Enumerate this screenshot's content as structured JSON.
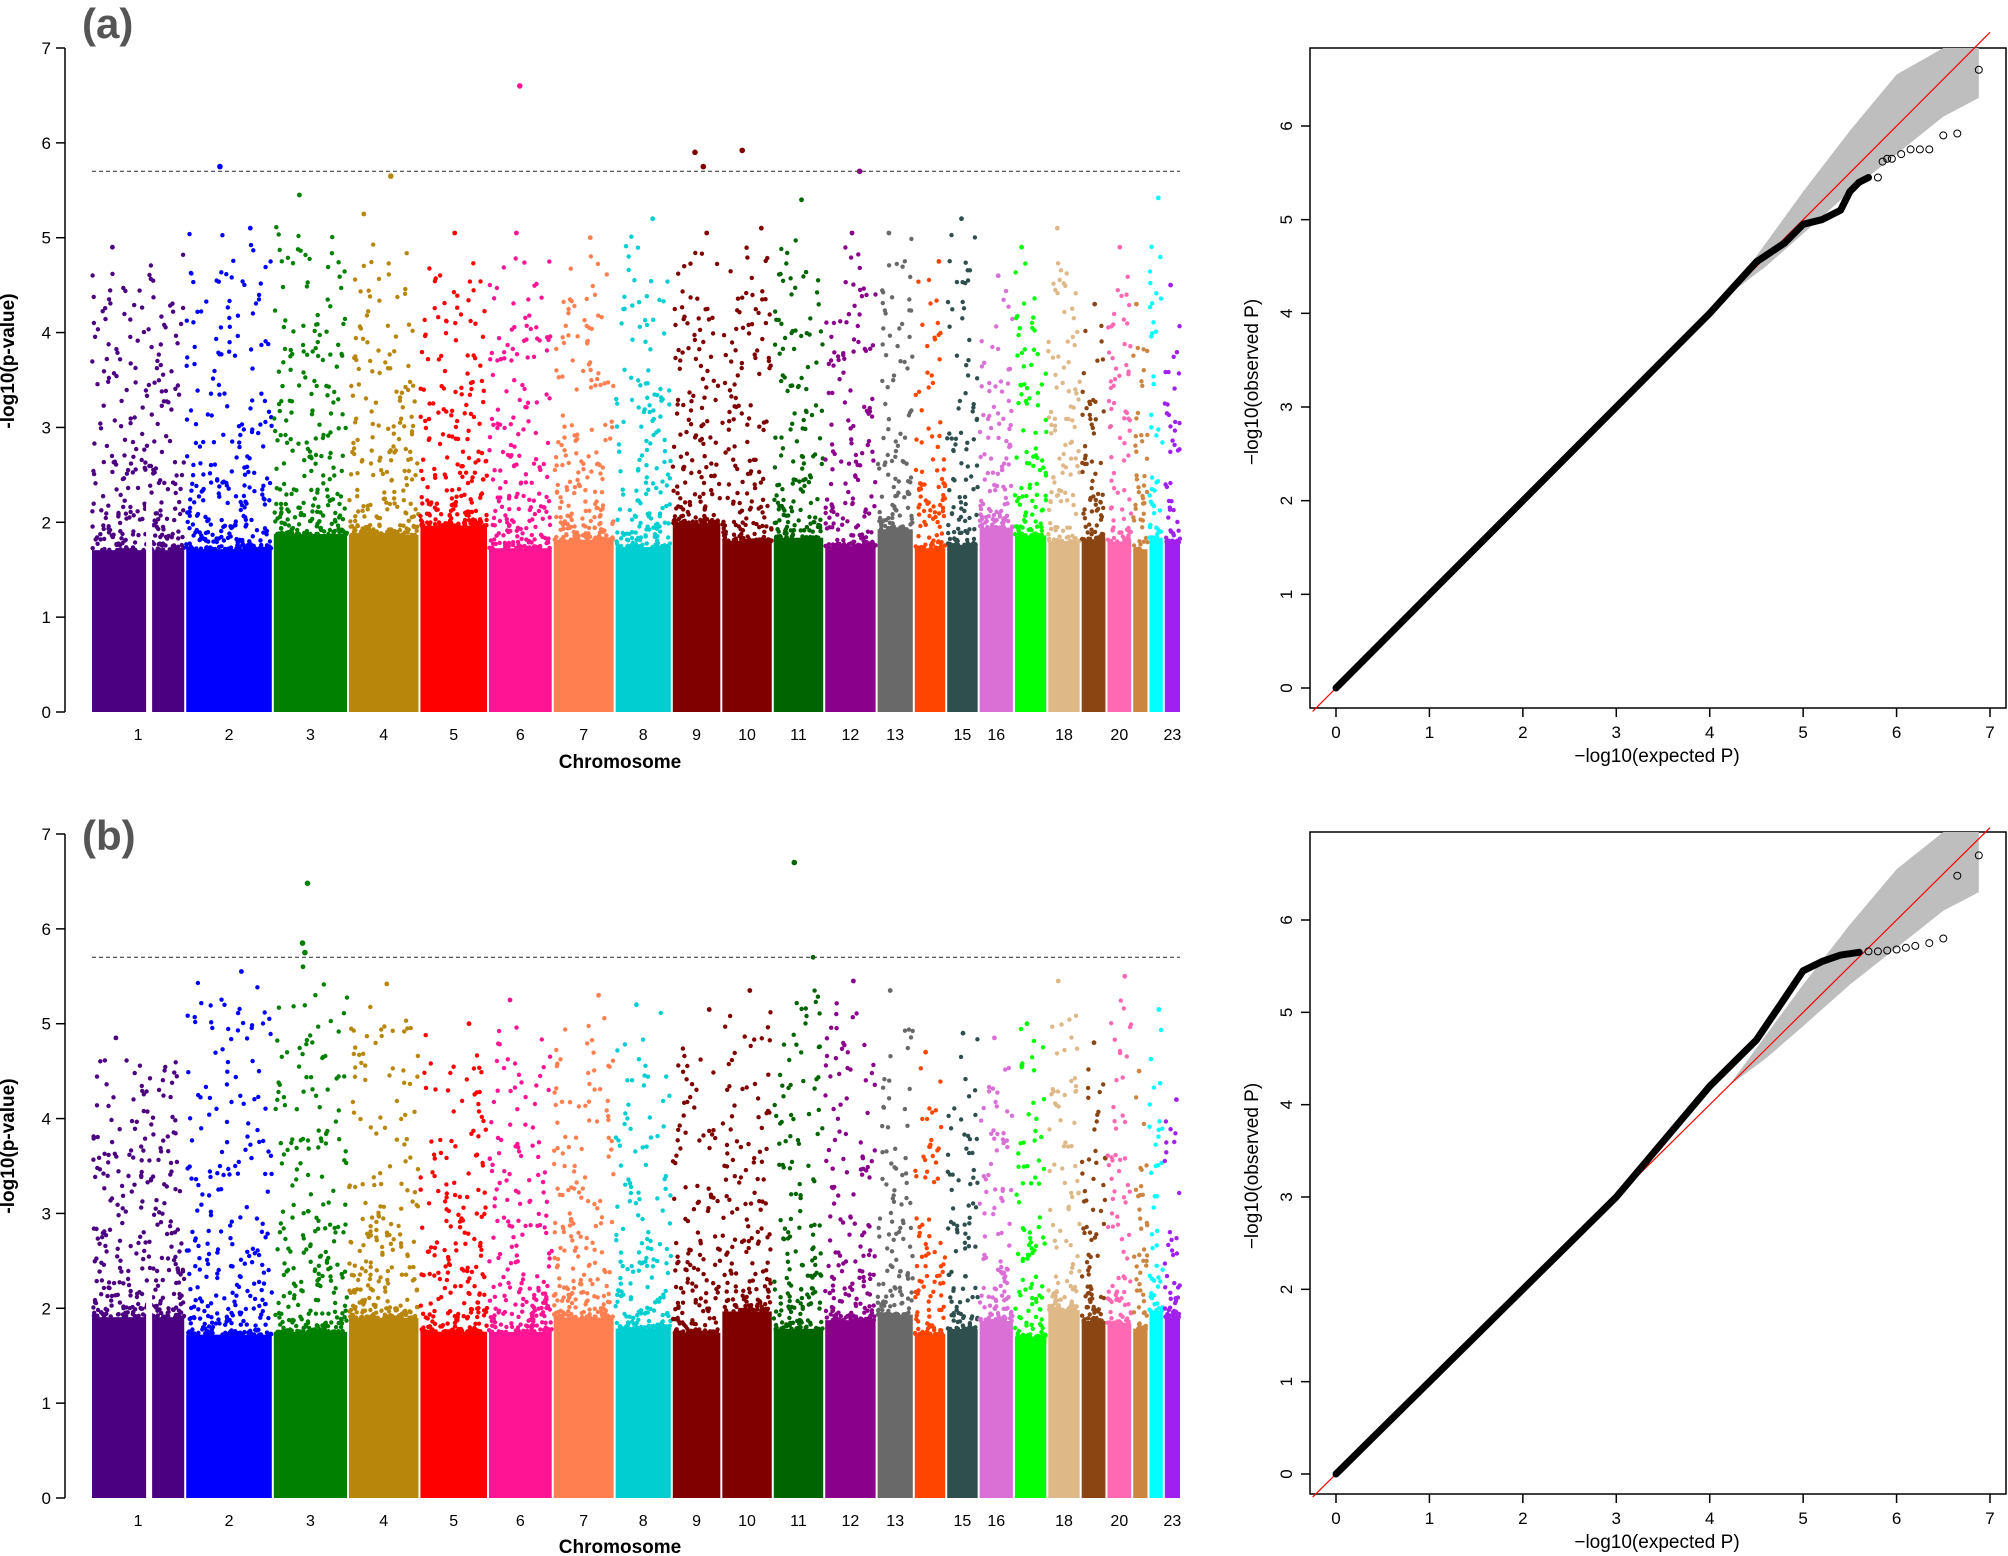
{
  "chart_data": [
    {
      "type": "scatter",
      "kind": "manhattan",
      "panel_label": "(a)",
      "xlabel": "Chromosome",
      "ylabel": "-log10(p-value)",
      "ylim": [
        0,
        7
      ],
      "yticks": [
        "0",
        "1",
        "2",
        "3",
        "4",
        "5",
        "6",
        "7"
      ],
      "threshold": 5.7,
      "chromosomes": [
        "1",
        "2",
        "3",
        "4",
        "5",
        "6",
        "7",
        "8",
        "9",
        "10",
        "11",
        "12",
        "13",
        "14",
        "15",
        "16",
        "17",
        "18",
        "19",
        "20",
        "21",
        "22",
        "23"
      ],
      "xtick_labels": [
        "1",
        "2",
        "3",
        "4",
        "5",
        "6",
        "7",
        "8",
        "9",
        "10",
        "11",
        "12",
        "13",
        "",
        "15",
        "16",
        "",
        "18",
        "",
        "20",
        "",
        "",
        "23"
      ],
      "colors": [
        "#4b0082",
        "#4b0082",
        "#0000ff",
        "#008000",
        "#b8860b",
        "#ff0000",
        "#ff1493",
        "#ff7f50",
        "#00ced1",
        "#800000",
        "#800000",
        "#006400",
        "#8b008b",
        "#696969",
        "#ff4500",
        "#2f4f4f",
        "#da70d6",
        "#00ff00",
        "#deb887",
        "#8b4513",
        "#ff69b4",
        "#cd853f",
        "#00ffff",
        "#a020f0"
      ],
      "chr_max": [
        4.9,
        5.1,
        5.45,
        5.25,
        5.05,
        5.05,
        5.0,
        5.2,
        5.05,
        5.1,
        5.4,
        5.05,
        5.05,
        4.75,
        5.2,
        4.6,
        4.9,
        5.1,
        4.3,
        4.9,
        4.3,
        5.42,
        4.5
      ],
      "top_hits": [
        {
          "chr": "2",
          "value": 5.75
        },
        {
          "chr": "4",
          "value": 5.65
        },
        {
          "chr": "6",
          "value": 6.6
        },
        {
          "chr": "9",
          "value": 5.9
        },
        {
          "chr": "9",
          "value": 5.75
        },
        {
          "chr": "10",
          "value": 5.92
        },
        {
          "chr": "12",
          "value": 5.7
        }
      ]
    },
    {
      "type": "scatter",
      "kind": "qq",
      "xlabel": "−log10(expected P)",
      "ylabel": "−log10(observed P)",
      "xlim": [
        0,
        7
      ],
      "ylim": [
        0,
        6.8
      ],
      "xticks": [
        "0",
        "1",
        "2",
        "3",
        "4",
        "5",
        "6",
        "7"
      ],
      "yticks": [
        "0",
        "1",
        "2",
        "3",
        "4",
        "5",
        "6"
      ],
      "curve": [
        [
          0,
          0
        ],
        [
          1,
          1
        ],
        [
          2,
          2
        ],
        [
          3,
          3
        ],
        [
          4,
          4
        ],
        [
          4.5,
          4.55
        ],
        [
          4.8,
          4.75
        ],
        [
          5.0,
          4.95
        ],
        [
          5.2,
          5.0
        ],
        [
          5.4,
          5.1
        ],
        [
          5.5,
          5.3
        ],
        [
          5.6,
          5.4
        ],
        [
          5.7,
          5.45
        ]
      ],
      "tail_points": [
        [
          5.8,
          5.45
        ],
        [
          5.85,
          5.62
        ],
        [
          5.9,
          5.65
        ],
        [
          5.95,
          5.65
        ],
        [
          6.05,
          5.7
        ],
        [
          6.15,
          5.75
        ],
        [
          6.25,
          5.75
        ],
        [
          6.35,
          5.75
        ],
        [
          6.5,
          5.9
        ],
        [
          6.65,
          5.92
        ],
        [
          6.88,
          6.6
        ]
      ]
    },
    {
      "type": "scatter",
      "kind": "manhattan",
      "panel_label": "(b)",
      "xlabel": "Chromosome",
      "ylabel": "-log10(p-value)",
      "ylim": [
        0,
        7
      ],
      "yticks": [
        "0",
        "1",
        "2",
        "3",
        "4",
        "5",
        "6",
        "7"
      ],
      "threshold": 5.7,
      "chromosomes": [
        "1",
        "2",
        "3",
        "4",
        "5",
        "6",
        "7",
        "8",
        "9",
        "10",
        "11",
        "12",
        "13",
        "14",
        "15",
        "16",
        "17",
        "18",
        "19",
        "20",
        "21",
        "22",
        "23"
      ],
      "xtick_labels": [
        "1",
        "2",
        "3",
        "4",
        "5",
        "6",
        "7",
        "8",
        "9",
        "10",
        "11",
        "12",
        "13",
        "",
        "15",
        "16",
        "",
        "18",
        "",
        "20",
        "",
        "",
        "23"
      ],
      "colors": [
        "#4b0082",
        "#4b0082",
        "#0000ff",
        "#008000",
        "#b8860b",
        "#ff0000",
        "#ff1493",
        "#ff7f50",
        "#00ced1",
        "#800000",
        "#800000",
        "#006400",
        "#8b008b",
        "#696969",
        "#ff4500",
        "#2f4f4f",
        "#da70d6",
        "#00ff00",
        "#deb887",
        "#8b4513",
        "#ff69b4",
        "#cd853f",
        "#00ffff",
        "#a020f0"
      ],
      "chr_max": [
        4.85,
        5.55,
        5.6,
        5.42,
        5.0,
        5.25,
        5.3,
        5.2,
        5.15,
        5.35,
        5.7,
        5.45,
        5.35,
        4.7,
        4.9,
        4.85,
        5.0,
        5.45,
        4.8,
        5.5,
        4.5,
        5.15,
        4.2
      ],
      "top_hits": [
        {
          "chr": "3",
          "value": 6.48
        },
        {
          "chr": "3",
          "value": 5.85
        },
        {
          "chr": "3",
          "value": 5.75
        },
        {
          "chr": "11",
          "value": 6.7
        }
      ]
    },
    {
      "type": "scatter",
      "kind": "qq",
      "xlabel": "−log10(expected P)",
      "ylabel": "−log10(observed P)",
      "xlim": [
        0,
        7
      ],
      "ylim": [
        0,
        6.8
      ],
      "xticks": [
        "0",
        "1",
        "2",
        "3",
        "4",
        "5",
        "6",
        "7"
      ],
      "yticks": [
        "0",
        "1",
        "2",
        "3",
        "4",
        "5",
        "6"
      ],
      "curve": [
        [
          0,
          0
        ],
        [
          1,
          1
        ],
        [
          2,
          2
        ],
        [
          3,
          3.0
        ],
        [
          3.5,
          3.6
        ],
        [
          4.0,
          4.2
        ],
        [
          4.5,
          4.7
        ],
        [
          4.8,
          5.15
        ],
        [
          5.0,
          5.45
        ],
        [
          5.2,
          5.55
        ],
        [
          5.4,
          5.62
        ],
        [
          5.6,
          5.65
        ]
      ],
      "tail_points": [
        [
          5.7,
          5.66
        ],
        [
          5.8,
          5.66
        ],
        [
          5.9,
          5.67
        ],
        [
          6.0,
          5.68
        ],
        [
          6.1,
          5.7
        ],
        [
          6.2,
          5.72
        ],
        [
          6.35,
          5.75
        ],
        [
          6.5,
          5.8
        ],
        [
          6.65,
          6.48
        ],
        [
          6.88,
          6.7
        ]
      ]
    }
  ]
}
